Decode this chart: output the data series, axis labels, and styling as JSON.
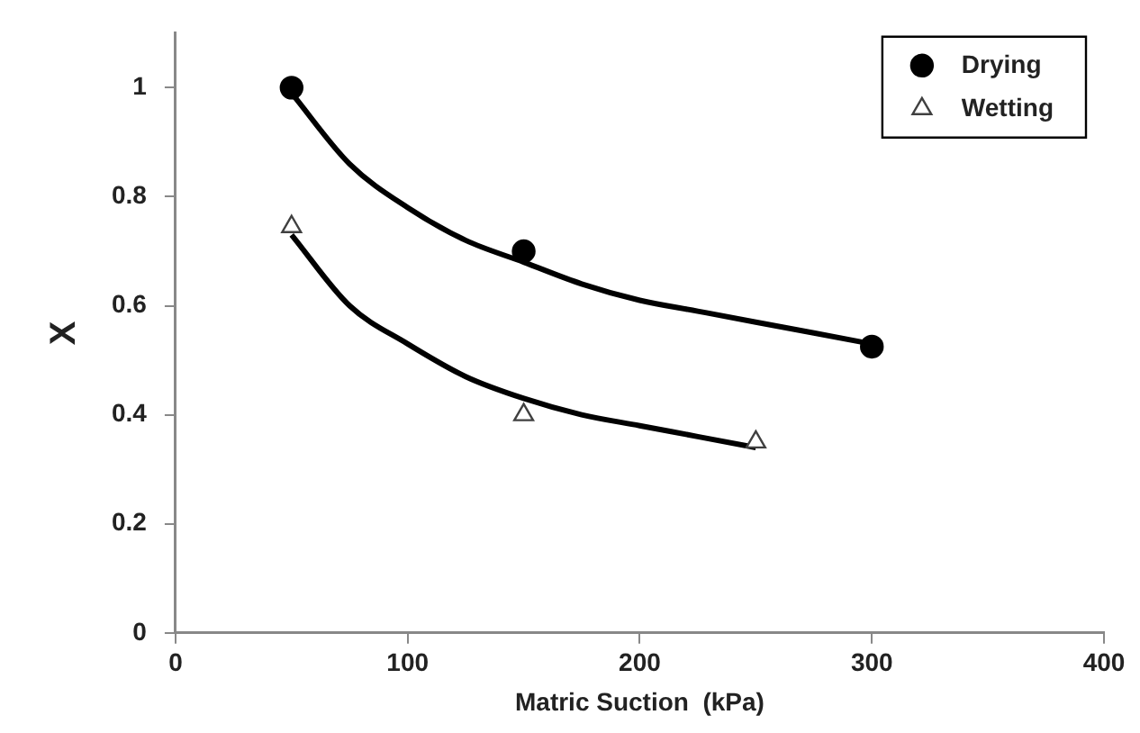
{
  "chart_data": {
    "type": "scatter",
    "xlabel": "Matric Suction  (kPa)",
    "ylabel": "X",
    "xlim": [
      0,
      400
    ],
    "xticks": [
      0,
      100,
      200,
      300,
      400
    ],
    "ylim": [
      0,
      1.1
    ],
    "yticks": [
      0,
      0.2,
      0.4,
      0.6,
      0.8,
      1
    ],
    "grid": false,
    "legend": "top right",
    "series": [
      {
        "name": "Drying",
        "color": "#000000",
        "marker": "circle",
        "x": [
          50,
          150,
          300
        ],
        "values": [
          1.0,
          0.7,
          0.525
        ]
      },
      {
        "name": "Wetting",
        "color": "#404040",
        "marker": "triangle",
        "x": [
          50,
          150,
          250
        ],
        "values": [
          0.745,
          0.4,
          0.35
        ]
      },
      {
        "type": "line",
        "color": "#000000",
        "marker": "none",
        "x": [
          50,
          75,
          100,
          125,
          150,
          175,
          200,
          225,
          250,
          275,
          300
        ],
        "values": [
          0.99,
          0.86,
          0.78,
          0.72,
          0.68,
          0.64,
          0.61,
          0.59,
          0.57,
          0.55,
          0.53
        ]
      },
      {
        "type": "line",
        "color": "#000000",
        "marker": "none",
        "x": [
          50,
          75,
          100,
          125,
          150,
          175,
          200,
          225,
          250
        ],
        "values": [
          0.73,
          0.6,
          0.53,
          0.47,
          0.43,
          0.4,
          0.38,
          0.36,
          0.34
        ]
      }
    ]
  }
}
